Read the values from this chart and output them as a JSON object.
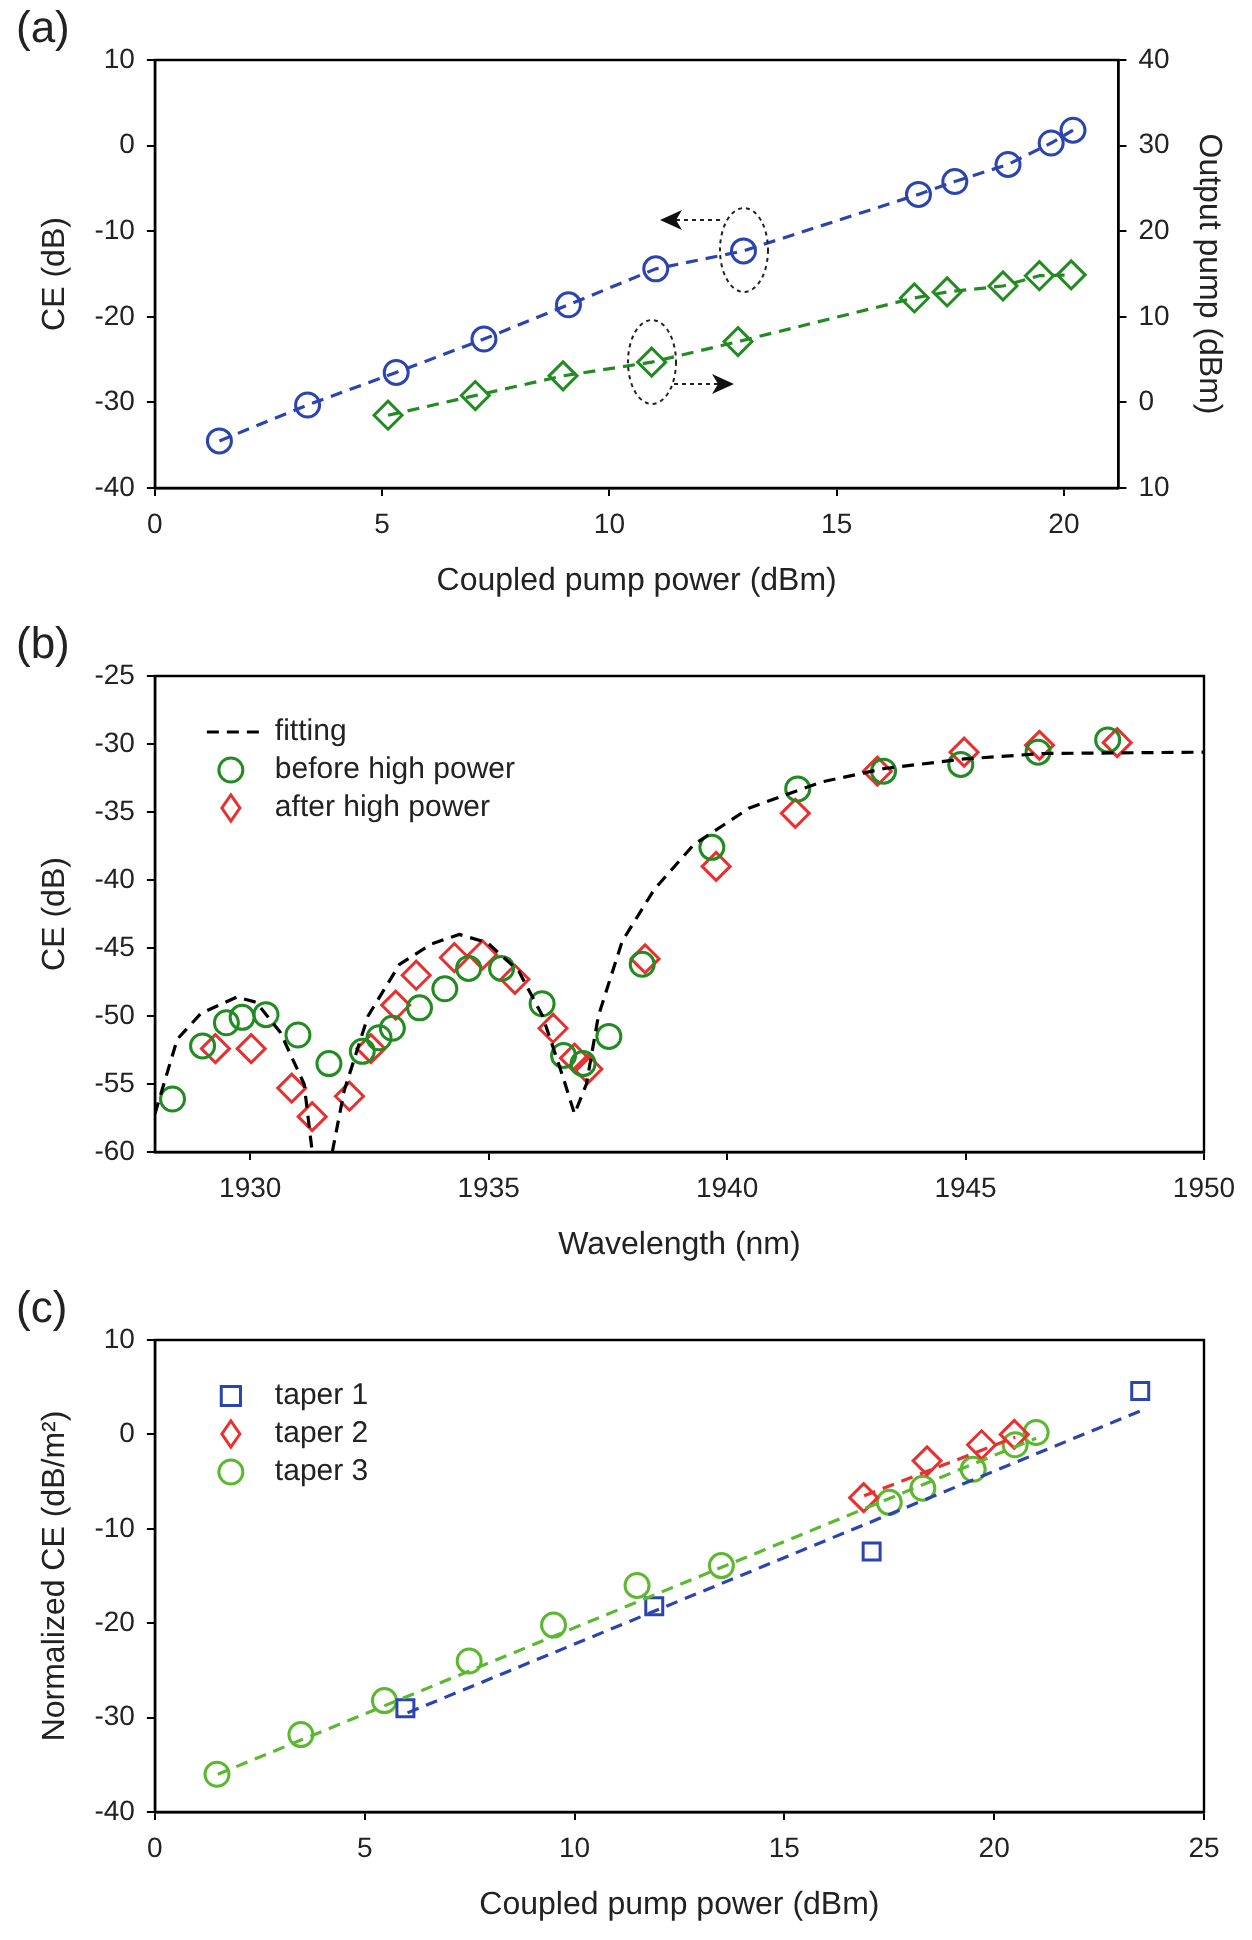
{
  "chart_data": [
    {
      "type": "line",
      "title": "(a)",
      "xlabel": "Coupled pump power (dBm)",
      "ylabel": "CE (dB)",
      "y2label": "Output pump (dBm)",
      "xlim": [
        0,
        21.2
      ],
      "xticks": [
        0,
        5,
        10,
        15,
        20
      ],
      "ylim": [
        -40,
        10
      ],
      "yticks": [
        -40,
        -30,
        -20,
        -10,
        0,
        10
      ],
      "y2lim": [
        -10,
        40
      ],
      "y2ticks": [
        {
          "value": -10,
          "label": "10"
        },
        0,
        10,
        20,
        30,
        40
      ],
      "series": [
        {
          "color": "#2b45b0",
          "marker": "circle",
          "line_style": "dashed",
          "x": [
            1.42,
            3.36,
            5.31,
            7.24,
            9.1,
            11.02,
            12.95,
            16.8,
            17.6,
            18.77,
            19.72,
            20.2
          ],
          "values": [
            -34.5,
            -30.3,
            -26.5,
            -22.6,
            -18.6,
            -14.4,
            -12.3,
            -5.7,
            -4.2,
            -2.2,
            0.3,
            1.8
          ]
        },
        {
          "color": "#228b22",
          "marker": "diamond",
          "line_style": "dashed",
          "axis": "y2",
          "x": [
            5.13,
            7.05,
            8.98,
            10.93,
            12.83,
            16.71,
            17.43,
            18.66,
            19.46,
            20.16
          ],
          "values": [
            -1.5,
            0.8,
            3.1,
            4.7,
            7.1,
            12.2,
            12.9,
            13.6,
            14.8,
            14.9
          ]
        }
      ]
    },
    {
      "type": "scatter",
      "title": "(b)",
      "xlabel": "Wavelength (nm)",
      "ylabel": "CE (dB)",
      "xlim": [
        1928,
        1950
      ],
      "xticks": [
        1930,
        1935,
        1940,
        1945,
        1950
      ],
      "ylim": [
        -60,
        -25
      ],
      "yticks": [
        -60,
        -55,
        -50,
        -45,
        -40,
        -35,
        -30,
        -25
      ],
      "legend": "top left",
      "series": [
        {
          "type": "line",
          "name": "fitting",
          "color": "#000000",
          "marker": "none",
          "line_style": "dashed",
          "x": [
            1928,
            1928.47,
            1928.97,
            1929.72,
            1930.13,
            1930.63,
            1931.13,
            1931.3,
            1931.5,
            1931.72,
            1931.97,
            1932.47,
            1933.13,
            1933.8,
            1934.38,
            1934.97,
            1935.63,
            1936.13,
            1936.55,
            1936.8,
            1937.05,
            1937.3,
            1937.8,
            1938.47,
            1939.3,
            1940.47,
            1941.97,
            1943.3,
            1944.97,
            1946.63,
            1950
          ],
          "values": [
            -57.2,
            -51.7,
            -49.8,
            -48.6,
            -49,
            -51.2,
            -55,
            -60,
            null,
            -60,
            -55.5,
            -50,
            -46.2,
            -44.7,
            -44,
            -44.6,
            -46.7,
            -50,
            -54.4,
            -57.2,
            -55,
            -50,
            -44.5,
            -40.7,
            -37.4,
            -34.7,
            -32.8,
            -31.8,
            -31.1,
            -30.7,
            -30.6
          ]
        },
        {
          "name": "before high power",
          "color": "#228b22",
          "marker": "circle",
          "x": [
            1928.37,
            1929,
            1929.5,
            1929.83,
            1930.33,
            1931,
            1931.65,
            1932.35,
            1932.7,
            1932.98,
            1933.55,
            1934.08,
            1934.58,
            1935.27,
            1936.12,
            1936.57,
            1936.98,
            1937.52,
            1938.22,
            1939.68,
            1941.48,
            1943.28,
            1944.9,
            1946.52,
            1947.98
          ],
          "values": [
            -56.1,
            -52.2,
            -50.5,
            -50.1,
            -49.9,
            -51.4,
            -53.5,
            -52.6,
            -51.6,
            -50.9,
            -49.4,
            -48,
            -46.5,
            -46.5,
            -49.1,
            -52.9,
            -53.5,
            -51.5,
            -46.2,
            -37.6,
            -33.3,
            -32,
            -31.5,
            -30.6,
            -29.7
          ]
        },
        {
          "name": "after high power",
          "color": "#e8312f",
          "marker": "diamond",
          "x": [
            1929.27,
            1930.02,
            1930.87,
            1931.3,
            1932.08,
            1932.53,
            1933.05,
            1933.48,
            1934.28,
            1934.87,
            1935.55,
            1936.35,
            1936.8,
            1937.08,
            1938.28,
            1939.77,
            1941.43,
            1943.15,
            1944.97,
            1946.55,
            1948.18
          ],
          "values": [
            -52.4,
            -52.4,
            -55.3,
            -57.4,
            -55.9,
            -52.4,
            -49.2,
            -47,
            -45.7,
            -45.5,
            -47.3,
            -50.9,
            -53.1,
            -53.9,
            -45.8,
            -39,
            -35.1,
            -32,
            -30.6,
            -30.1,
            -29.9
          ]
        }
      ]
    },
    {
      "type": "scatter",
      "title": "(c)",
      "xlabel": "Coupled pump power (dBm)",
      "ylabel": "Normalized CE (dB/m²)",
      "xlim": [
        0,
        25
      ],
      "xticks": [
        0,
        5,
        10,
        15,
        20,
        25
      ],
      "ylim": [
        -40,
        10
      ],
      "yticks": [
        -40,
        -30,
        -20,
        -10,
        0,
        10
      ],
      "legend": "top left",
      "series": [
        {
          "type": "line",
          "color": "#2b45b0",
          "marker": "none",
          "line_style": "dashed",
          "x": [
            6.02,
            23.6
          ],
          "values": [
            -29.5,
            2.7
          ]
        },
        {
          "type": "line",
          "color": "#e8312f",
          "marker": "none",
          "line_style": "dashed",
          "x": [
            16.9,
            20.5
          ],
          "values": [
            -6.5,
            -0.3
          ]
        },
        {
          "type": "line",
          "color": "#5cb82e",
          "marker": "none",
          "line_style": "dashed",
          "x": [
            1.5,
            21
          ],
          "values": [
            -36,
            -0.4
          ]
        },
        {
          "name": "taper 1",
          "color": "#2b45b0",
          "marker": "square",
          "x": [
            5.97,
            11.9,
            17.08,
            23.48
          ],
          "values": [
            -29,
            -18.2,
            -12.4,
            4.6
          ]
        },
        {
          "name": "taper 2",
          "color": "#e8312f",
          "marker": "diamond",
          "x": [
            16.89,
            18.4,
            19.7,
            20.48
          ],
          "values": [
            -6.7,
            -2.8,
            -1.1,
            0
          ]
        },
        {
          "name": "taper 3",
          "color": "#5cb82e",
          "marker": "circle",
          "x": [
            1.48,
            3.48,
            5.47,
            7.49,
            9.5,
            11.49,
            13.5,
            17.5,
            18.3,
            19.5,
            20.5,
            21
          ],
          "values": [
            -36,
            -31.8,
            -28.2,
            -24,
            -20.2,
            -16,
            -13.9,
            -7.2,
            -5.7,
            -3.7,
            -1.1,
            0.2
          ]
        }
      ]
    }
  ]
}
